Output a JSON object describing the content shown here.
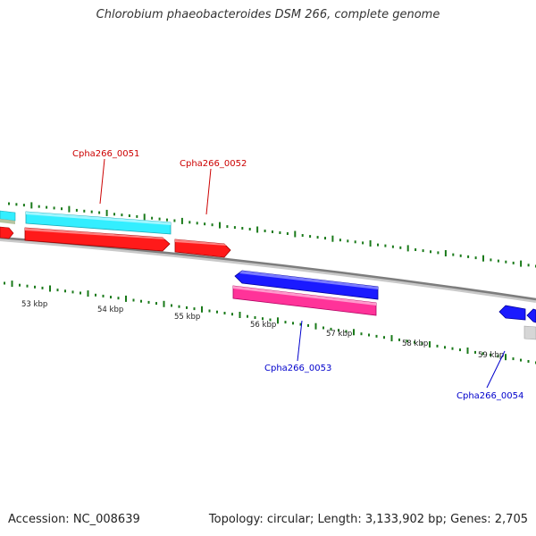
{
  "title": "Chlorobium phaeobacteroides DSM 266, complete genome",
  "footer": {
    "accession": "Accession: NC_008639",
    "summary": "Topology: circular; Length: 3,133,902 bp; Genes: 2,705"
  },
  "colors": {
    "forward_gene": "#ff1a1a",
    "reverse_gene": "#1a1aff",
    "forward_cds": "#33eeff",
    "reverse_cds": "#ff3399",
    "backbone": "#8c8c8c",
    "tick": "#1a7a1a",
    "label_red": "#cc0000",
    "label_blue": "#0000cc"
  },
  "scale": {
    "kbp_labels": [
      "53 kbp",
      "54 kbp",
      "55 kbp",
      "56 kbp",
      "57 kbp",
      "58 kbp",
      "59 kbp"
    ]
  },
  "genes": [
    {
      "name": "Cpha266_0051",
      "strand": "forward"
    },
    {
      "name": "Cpha266_0052",
      "strand": "forward"
    },
    {
      "name": "Cpha266_0053",
      "strand": "reverse"
    },
    {
      "name": "Cpha266_0054",
      "strand": "reverse"
    }
  ]
}
